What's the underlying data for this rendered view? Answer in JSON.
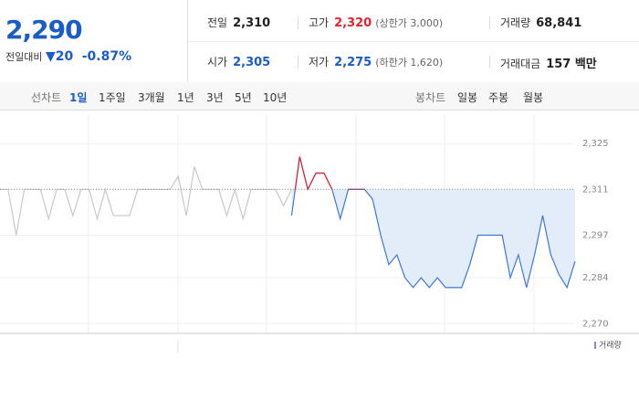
{
  "quote": {
    "price": "2,290",
    "change_label": "전일대비",
    "change": "20",
    "change_rate": "-0.87%",
    "stats": [
      {
        "label": "전일",
        "value": "2,310"
      },
      {
        "label": "고가",
        "value": "2,320",
        "note": "(상한가 3,000)"
      },
      {
        "label": "거래량",
        "value": "68,841"
      },
      {
        "label": "시가",
        "value": "2,305"
      },
      {
        "label": "저가",
        "value": "2,275",
        "note": "(하한가 1,620)"
      },
      {
        "label": "거래대금",
        "value": "157 백만"
      }
    ]
  },
  "tabs": {
    "line_label": "선차트",
    "line_tabs": [
      "1일",
      "1주일",
      "3개월",
      "1년",
      "3년",
      "5년",
      "10년"
    ],
    "candle_label": "봉차트",
    "candle_tabs": [
      "일봉",
      "주봉",
      "월봉"
    ]
  },
  "chart_data": {
    "type": "line",
    "ylim": [
      2267,
      2334
    ],
    "yticks": [
      {
        "value": 2325,
        "label": "2,325"
      },
      {
        "value": 2311,
        "label": "2,311"
      },
      {
        "value": 2297,
        "label": "2,297"
      },
      {
        "value": 2284,
        "label": "2,284"
      },
      {
        "value": 2270,
        "label": "2,270"
      }
    ],
    "baseline": 2311,
    "up_color": "#e8222b",
    "fill_color": "#e3ecf9",
    "grid": true,
    "legend": "거래량",
    "series": [
      {
        "color": "#c8c8c8",
        "values": [
          2311,
          2311,
          2297,
          2311,
          2311,
          2311,
          2302,
          2311,
          2311,
          2303,
          2311,
          2311,
          2302,
          2311,
          2303,
          2303,
          2303,
          2311,
          2311,
          2311,
          2311,
          2311,
          2315,
          2303,
          2318,
          2311,
          2311,
          2311,
          2303,
          2311,
          2302,
          2311,
          2311,
          2311,
          2311,
          2306,
          2311,
          null,
          null,
          null,
          null,
          null,
          null,
          null,
          null,
          null,
          null,
          null,
          null,
          null,
          null,
          null,
          null,
          null,
          null,
          null,
          null,
          null,
          null,
          null,
          null,
          null,
          null,
          null,
          null,
          null,
          null,
          null,
          null,
          null,
          null,
          null
        ]
      },
      {
        "color": "#3b78d6",
        "values": [
          null,
          null,
          null,
          null,
          null,
          null,
          null,
          null,
          null,
          null,
          null,
          null,
          null,
          null,
          null,
          null,
          null,
          null,
          null,
          null,
          null,
          null,
          null,
          null,
          null,
          null,
          null,
          null,
          null,
          null,
          null,
          null,
          null,
          null,
          null,
          null,
          2303,
          2321,
          2311,
          2316,
          2316,
          2311,
          2302,
          2311,
          2311,
          2311,
          2308,
          2297,
          2288,
          2291,
          2284,
          2281,
          2284,
          2281,
          2284,
          2281,
          2281,
          2281,
          2288,
          2297,
          2297,
          2297,
          2297,
          2284,
          2291,
          2281,
          2291,
          2303,
          2291,
          2285,
          2281,
          2289
        ]
      }
    ]
  }
}
